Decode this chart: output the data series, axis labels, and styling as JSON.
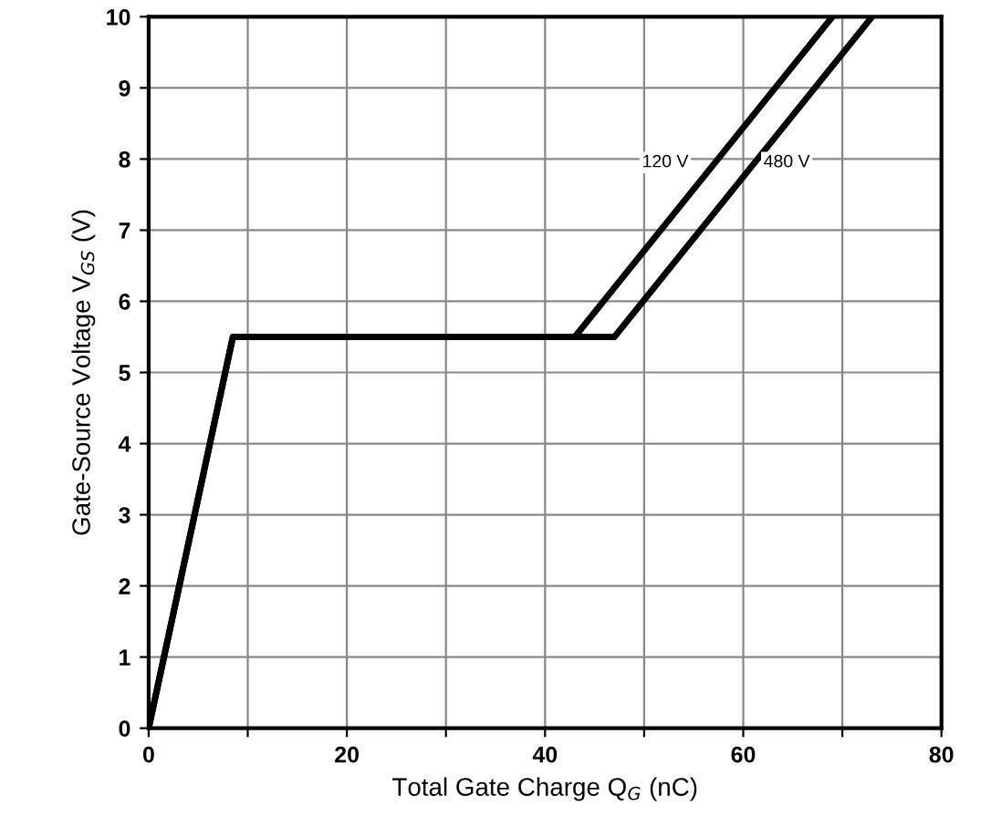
{
  "chart_data": {
    "type": "line",
    "xlabel": "Total Gate Charge Q$_{G}$ (nC)",
    "ylabel": "Gate-Source Voltage V$_{GS}$ (V)",
    "xlim": [
      0,
      80
    ],
    "ylim": [
      0,
      10
    ],
    "xticks": [
      0,
      {
        "value": 10,
        "label": null
      },
      20,
      {
        "value": 30,
        "label": null
      },
      40,
      {
        "value": 50,
        "label": null
      },
      60,
      {
        "value": 70,
        "label": null
      },
      80
    ],
    "yticks": [
      0,
      1,
      2,
      3,
      4,
      5,
      6,
      7,
      8,
      9,
      10
    ],
    "grid": true,
    "legend": false,
    "marker": "none",
    "line_style": "solid",
    "series": [
      {
        "name": "120 V",
        "color": "#000000",
        "x": [
          0,
          8.5,
          43,
          69
        ],
        "values": [
          0,
          5.5,
          5.5,
          10
        ]
      },
      {
        "name": "480 V",
        "color": "#000000",
        "x": [
          0,
          8.5,
          47,
          73
        ],
        "values": [
          0,
          5.5,
          5.5,
          10
        ]
      }
    ]
  }
}
